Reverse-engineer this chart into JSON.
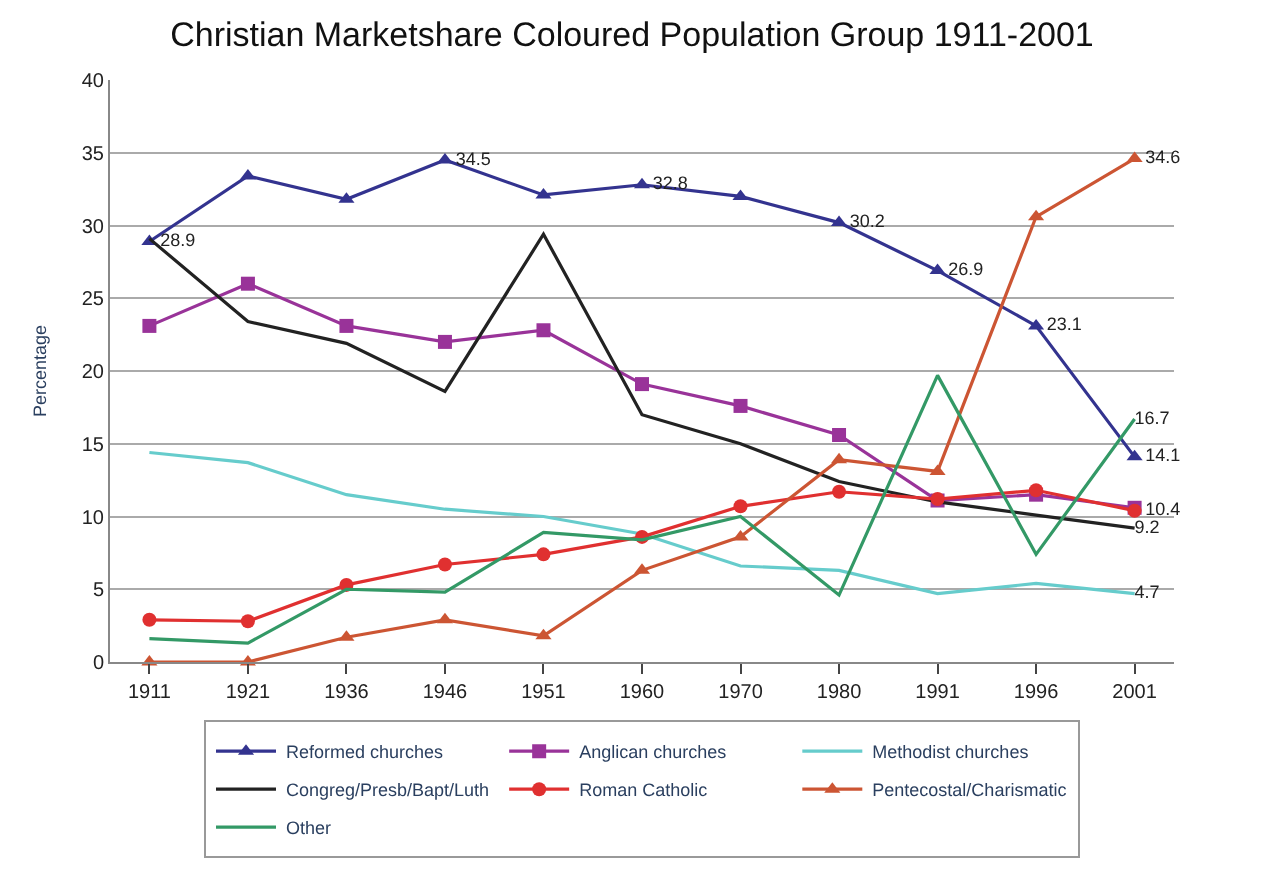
{
  "chart_data": {
    "type": "line",
    "title": "Christian Marketshare Coloured Population Group 1911-2001",
    "ylabel": "Percentage",
    "categories": [
      "1911",
      "1921",
      "1936",
      "1946",
      "1951",
      "1960",
      "1970",
      "1980",
      "1991",
      "1996",
      "2001"
    ],
    "series": [
      {
        "name": "Reformed churches",
        "color": "#33338f",
        "marker": "triangle",
        "values": [
          28.9,
          33.4,
          31.8,
          34.5,
          32.1,
          32.8,
          32.0,
          30.2,
          26.9,
          23.1,
          14.1
        ],
        "value_labels": [
          "28.9",
          null,
          null,
          "34.5",
          null,
          "32.8",
          null,
          "30.2",
          "26.9",
          "23.1",
          "14.1"
        ]
      },
      {
        "name": "Anglican churches",
        "color": "#993399",
        "marker": "square",
        "values": [
          23.1,
          26.0,
          23.1,
          22.0,
          22.8,
          19.1,
          17.6,
          15.6,
          11.1,
          11.5,
          10.6
        ]
      },
      {
        "name": "Methodist churches",
        "color": "#66cccc",
        "marker": "none",
        "values": [
          14.4,
          13.7,
          11.5,
          10.5,
          10.0,
          8.8,
          6.6,
          6.3,
          4.7,
          5.4,
          4.7
        ],
        "value_labels": [
          null,
          null,
          null,
          null,
          null,
          null,
          null,
          null,
          null,
          null,
          "4.7"
        ]
      },
      {
        "name": "Congreg/Presb/Bapt/Luth",
        "color": "#222222",
        "marker": "none",
        "values": [
          29.1,
          23.4,
          21.9,
          18.6,
          29.4,
          17.0,
          15.0,
          12.4,
          11.0,
          10.1,
          9.2
        ],
        "value_labels": [
          null,
          null,
          null,
          null,
          null,
          null,
          null,
          null,
          null,
          null,
          "9.2"
        ]
      },
      {
        "name": "Roman Catholic",
        "color": "#e03030",
        "marker": "circle",
        "values": [
          2.9,
          2.8,
          5.3,
          6.7,
          7.4,
          8.6,
          10.7,
          11.7,
          11.2,
          11.8,
          10.4
        ],
        "value_labels": [
          null,
          null,
          null,
          null,
          null,
          null,
          null,
          null,
          null,
          null,
          "10.4"
        ]
      },
      {
        "name": "Pentecostal/Charismatic",
        "color": "#cc5533",
        "marker": "triangle",
        "values": [
          0,
          0,
          1.7,
          2.9,
          1.8,
          6.3,
          8.6,
          13.9,
          13.1,
          30.6,
          34.6
        ],
        "value_labels": [
          null,
          null,
          null,
          null,
          null,
          null,
          null,
          null,
          null,
          null,
          "34.6"
        ]
      },
      {
        "name": "Other",
        "color": "#339966",
        "marker": "none",
        "values": [
          1.6,
          1.3,
          5.0,
          4.8,
          8.9,
          8.4,
          10.0,
          4.6,
          19.7,
          7.4,
          16.7
        ],
        "value_labels": [
          null,
          null,
          null,
          null,
          null,
          null,
          null,
          null,
          null,
          null,
          "16.7"
        ]
      }
    ],
    "ylim": [
      0,
      40
    ],
    "yticks": [
      0,
      5,
      10,
      15,
      20,
      25,
      30,
      35,
      40
    ],
    "grid": "y",
    "legend": "bottom",
    "line_style": "solid"
  }
}
